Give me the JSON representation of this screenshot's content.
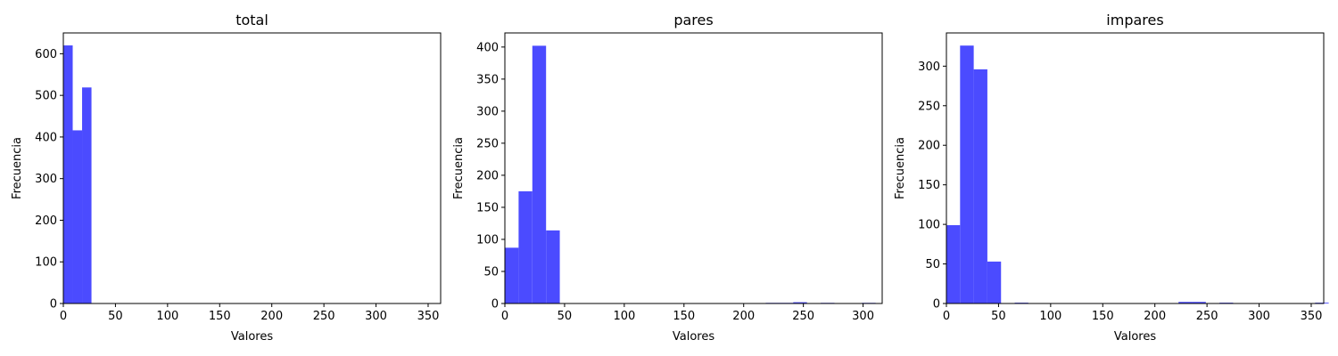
{
  "chart_data": [
    {
      "type": "bar",
      "title": "total",
      "xlabel": "Valores",
      "ylabel": "Frecuencia",
      "xlim": [
        0,
        362
      ],
      "ylim": [
        0,
        650
      ],
      "xticks": [
        0,
        50,
        100,
        150,
        200,
        250,
        300,
        350
      ],
      "yticks": [
        0,
        100,
        200,
        300,
        400,
        500,
        600
      ],
      "bin_width": 9,
      "color": "#4b4bff",
      "bins": [
        {
          "x0": 0,
          "count": 620
        },
        {
          "x0": 9,
          "count": 416
        },
        {
          "x0": 18,
          "count": 519
        },
        {
          "x0": 45,
          "count": 1
        },
        {
          "x0": 63,
          "count": 1
        },
        {
          "x0": 225,
          "count": 1
        },
        {
          "x0": 234,
          "count": 1
        },
        {
          "x0": 243,
          "count": 1
        },
        {
          "x0": 270,
          "count": 1
        },
        {
          "x0": 351,
          "count": 1
        }
      ]
    },
    {
      "type": "bar",
      "title": "pares",
      "xlabel": "Valores",
      "ylabel": "Frecuencia",
      "xlim": [
        0,
        316
      ],
      "ylim": [
        0,
        422
      ],
      "xticks": [
        0,
        50,
        100,
        150,
        200,
        250,
        300
      ],
      "yticks": [
        0,
        50,
        100,
        150,
        200,
        250,
        300,
        350,
        400
      ],
      "bin_width": 11.5,
      "color": "#4b4bff",
      "bins": [
        {
          "x0": 0,
          "count": 87
        },
        {
          "x0": 11.5,
          "count": 175
        },
        {
          "x0": 23,
          "count": 402
        },
        {
          "x0": 34.5,
          "count": 114
        },
        {
          "x0": 218.5,
          "count": 1
        },
        {
          "x0": 230,
          "count": 1
        },
        {
          "x0": 241.5,
          "count": 2
        },
        {
          "x0": 264.5,
          "count": 1
        },
        {
          "x0": 299,
          "count": 1
        }
      ]
    },
    {
      "type": "bar",
      "title": "impares",
      "xlabel": "Valores",
      "ylabel": "Frecuencia",
      "xlim": [
        0,
        362
      ],
      "ylim": [
        0,
        342
      ],
      "xticks": [
        0,
        50,
        100,
        150,
        200,
        250,
        300,
        350
      ],
      "yticks": [
        0,
        50,
        100,
        150,
        200,
        250,
        300
      ],
      "bin_width": 13.1,
      "color": "#4b4bff",
      "bins": [
        {
          "x0": 0,
          "count": 99
        },
        {
          "x0": 13.1,
          "count": 326
        },
        {
          "x0": 26.2,
          "count": 296
        },
        {
          "x0": 39.3,
          "count": 53
        },
        {
          "x0": 65.5,
          "count": 1
        },
        {
          "x0": 222.7,
          "count": 2
        },
        {
          "x0": 235.8,
          "count": 2
        },
        {
          "x0": 262,
          "count": 1
        },
        {
          "x0": 353.7,
          "count": 1
        }
      ]
    }
  ]
}
